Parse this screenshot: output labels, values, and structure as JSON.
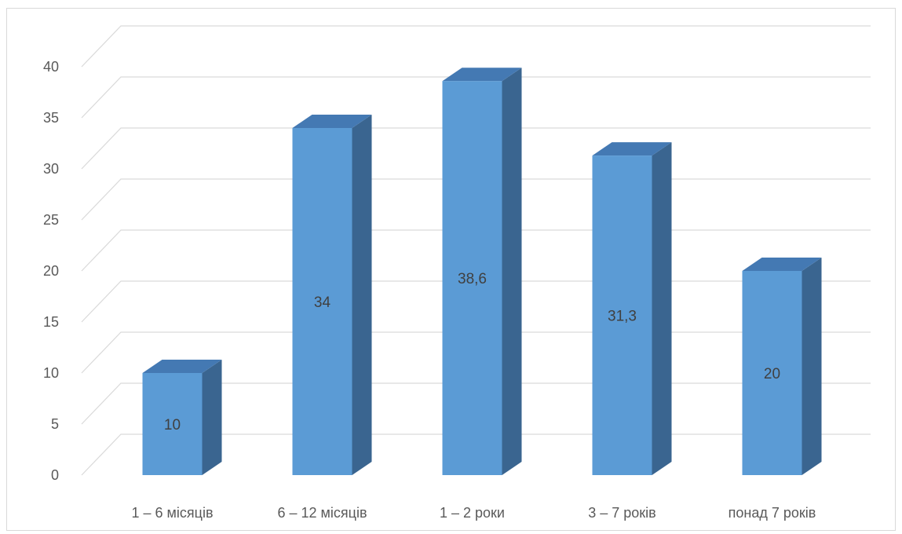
{
  "chart_data": {
    "type": "bar",
    "title": "",
    "xlabel": "",
    "ylabel": "",
    "categories": [
      "1 – 6 місяців",
      "6 – 12 місяців",
      "1 – 2 роки",
      "3 – 7 років",
      "понад 7 років"
    ],
    "values": [
      10,
      34,
      38.6,
      31.3,
      20
    ],
    "value_labels": [
      "10",
      "34",
      "38,6",
      "31,3",
      "20"
    ],
    "y_ticks": [
      0,
      5,
      10,
      15,
      20,
      25,
      30,
      35,
      40
    ],
    "ylim": [
      0,
      40
    ],
    "grid": true,
    "legend": "none",
    "style": "3d-column",
    "colors": {
      "bar_front": "#5b9bd5",
      "bar_top": "#4479b3",
      "bar_side": "#3a6590",
      "grid": "#d9d9d9",
      "text": "#595959"
    }
  }
}
